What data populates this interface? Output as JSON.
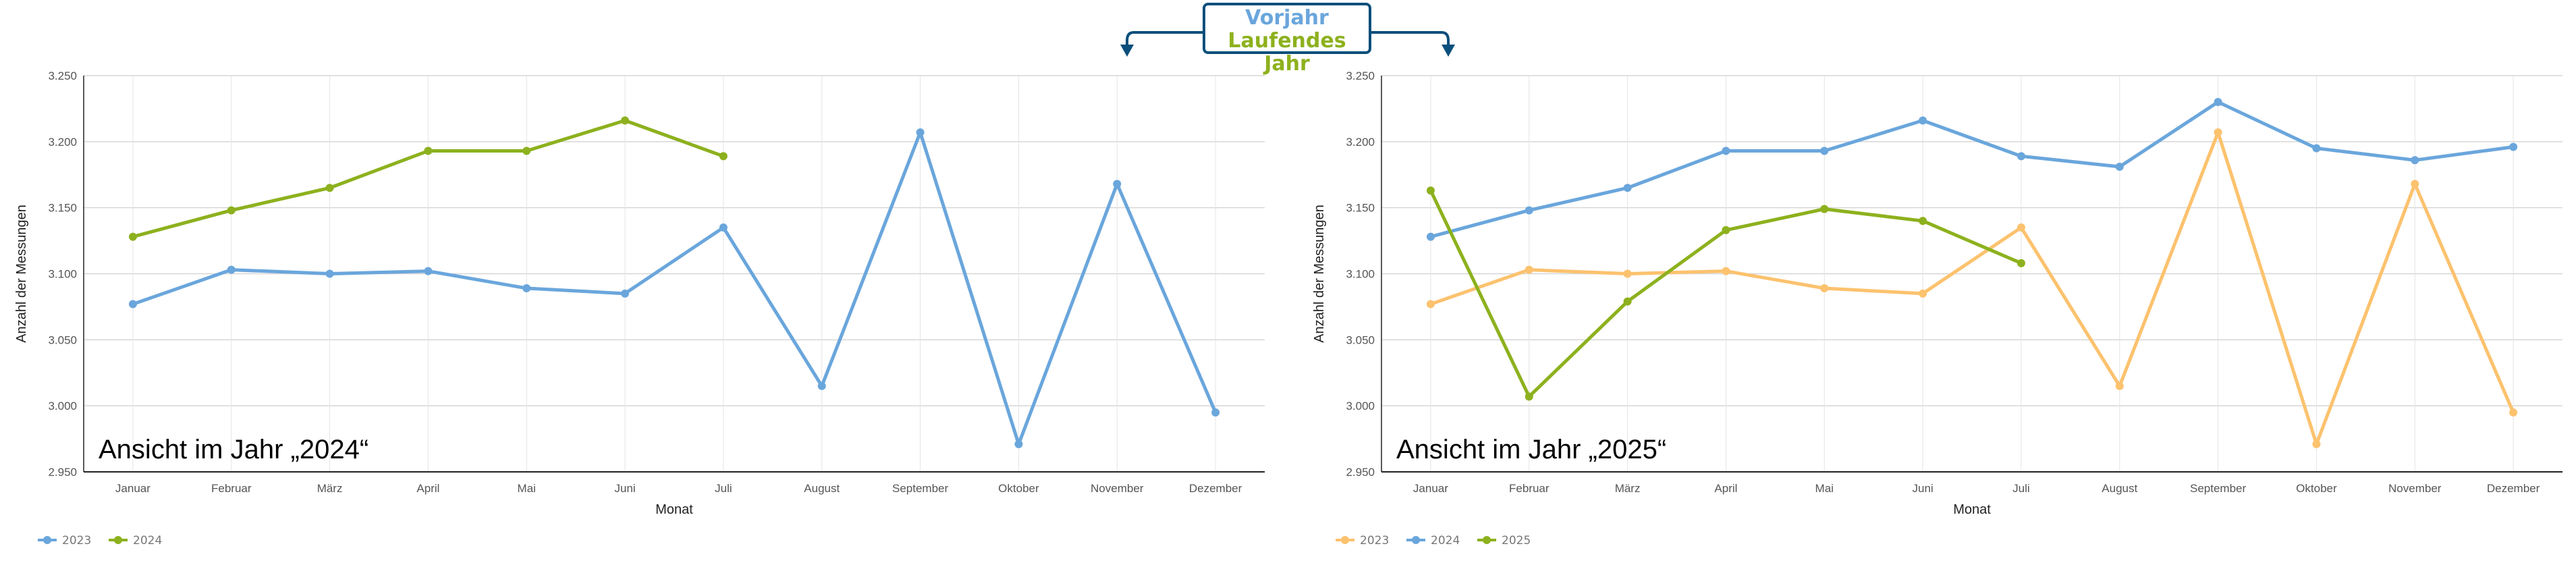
{
  "header": {
    "line1": "Vorjahr",
    "line2": "Laufendes Jahr",
    "box_color": "#0b4f7c",
    "line1_color": "#6aa6dc",
    "line2_color": "#8db11e"
  },
  "chart_data": [
    {
      "type": "line",
      "title": "Ansicht im Jahr „2024“",
      "xlabel": "Monat",
      "ylabel": "Anzahl der Messungen",
      "ylim": [
        2.95,
        3.25
      ],
      "yticks": [
        "2.950",
        "3.000",
        "3.050",
        "3.100",
        "3.150",
        "3.200",
        "3.250"
      ],
      "ytick_values": [
        2.95,
        3.0,
        3.05,
        3.1,
        3.15,
        3.2,
        3.25
      ],
      "grid": true,
      "legend_position": "bottom-left",
      "categories": [
        "Januar",
        "Februar",
        "März",
        "April",
        "Mai",
        "Juni",
        "Juli",
        "August",
        "September",
        "Oktober",
        "November",
        "Dezember"
      ],
      "series": [
        {
          "name": "2023",
          "color": "#6aa6dc",
          "values": [
            3.077,
            3.103,
            3.1,
            3.102,
            3.089,
            3.085,
            3.135,
            3.015,
            3.207,
            2.971,
            3.168,
            2.995
          ]
        },
        {
          "name": "2024",
          "color": "#8db11e",
          "values": [
            3.128,
            3.148,
            3.165,
            3.193,
            3.193,
            3.216,
            3.189,
            null,
            null,
            null,
            null,
            null
          ]
        }
      ]
    },
    {
      "type": "line",
      "title": "Ansicht im Jahr „2025“",
      "xlabel": "Monat",
      "ylabel": "Anzahl der Messungen",
      "ylim": [
        2.95,
        3.25
      ],
      "yticks": [
        "2.950",
        "3.000",
        "3.050",
        "3.100",
        "3.150",
        "3.200",
        "3.250"
      ],
      "ytick_values": [
        2.95,
        3.0,
        3.05,
        3.1,
        3.15,
        3.2,
        3.25
      ],
      "grid": true,
      "legend_position": "bottom-left",
      "categories": [
        "Januar",
        "Februar",
        "März",
        "April",
        "Mai",
        "Juni",
        "Juli",
        "August",
        "September",
        "Oktober",
        "November",
        "Dezember"
      ],
      "series": [
        {
          "name": "2023",
          "color": "#fcc26e",
          "values": [
            3.077,
            3.103,
            3.1,
            3.102,
            3.089,
            3.085,
            3.135,
            3.015,
            3.207,
            2.971,
            3.168,
            2.995
          ]
        },
        {
          "name": "2024",
          "color": "#6aa6dc",
          "values": [
            3.128,
            3.148,
            3.165,
            3.193,
            3.193,
            3.216,
            3.189,
            3.181,
            3.23,
            3.195,
            3.186,
            3.196
          ]
        },
        {
          "name": "2025",
          "color": "#8db11e",
          "values": [
            3.163,
            3.007,
            3.079,
            3.133,
            3.149,
            3.14,
            3.108,
            null,
            null,
            null,
            null,
            null
          ]
        }
      ]
    }
  ]
}
